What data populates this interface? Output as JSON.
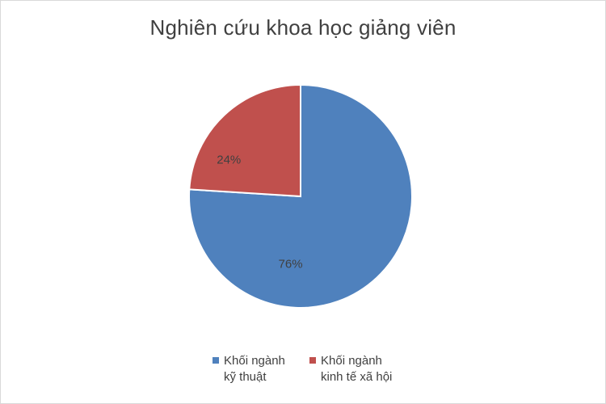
{
  "chart_data": {
    "type": "pie",
    "title": "Nghiên cứu khoa học giảng viên",
    "categories": [
      "Khối ngành kỹ thuật",
      "Khối ngành kinh tế xã hội"
    ],
    "legend_lines": [
      "Khối ngành\nkỹ thuật",
      "Khối ngành\nkinh tế xã hội"
    ],
    "values": [
      76,
      24
    ],
    "data_labels": [
      "76%",
      "24%"
    ],
    "colors": [
      "#4f81bd",
      "#c0504d"
    ],
    "legend_position": "bottom"
  }
}
